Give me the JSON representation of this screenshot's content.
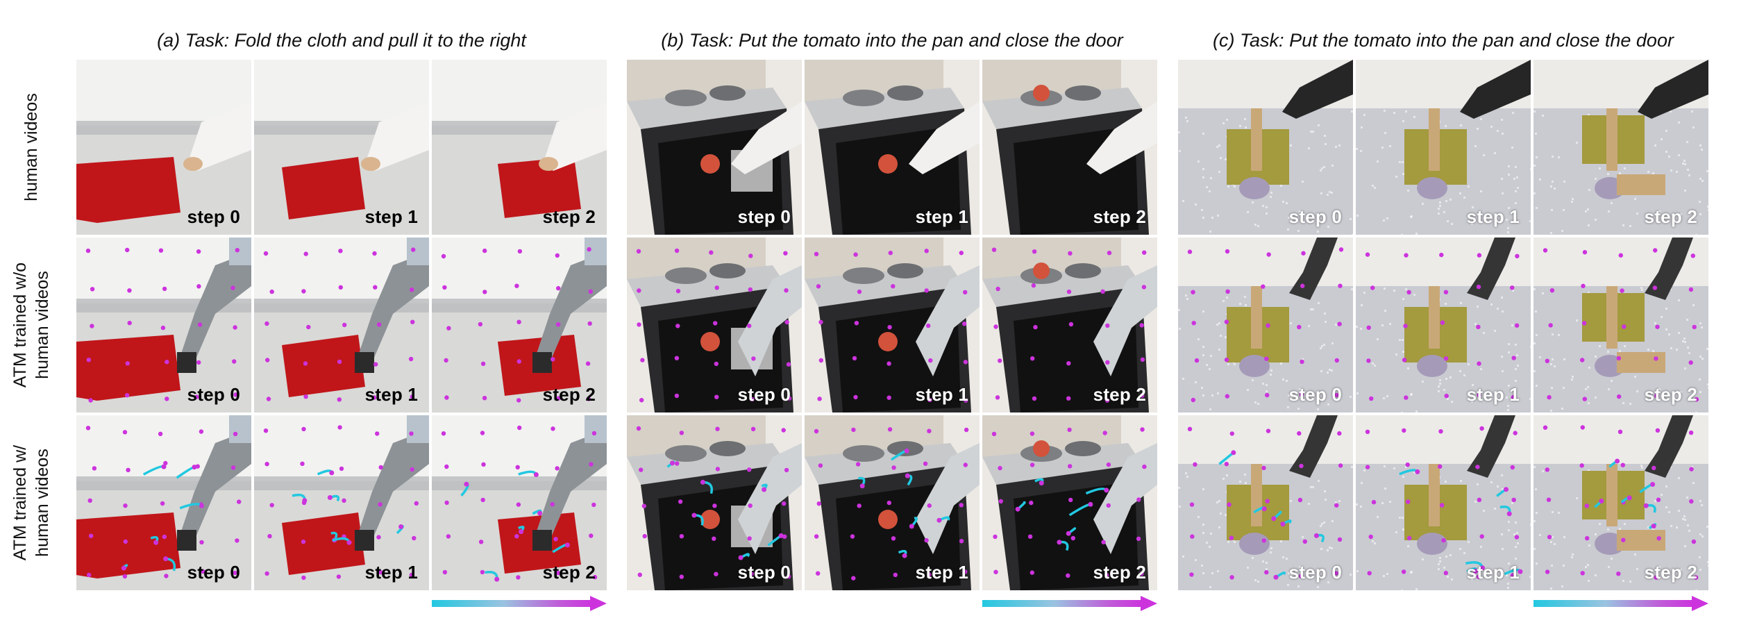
{
  "panels": [
    {
      "label": "(a) Task: Fold the cloth and pull it to the right",
      "scene": "cloth",
      "step_style": "dark"
    },
    {
      "label": "(b) Task: Put the tomato into the pan and close the door",
      "scene": "kitchen",
      "step_style": "light"
    },
    {
      "label": "(c) Task: Put the tomato into the pan and close the door",
      "scene": "board",
      "step_style": "light"
    }
  ],
  "rows": [
    {
      "label_lines": [
        "human videos"
      ],
      "kind": "human"
    },
    {
      "label_lines": [
        "ATM trained w/o",
        "human videos"
      ],
      "kind": "atm_without"
    },
    {
      "label_lines": [
        "ATM trained w/",
        "human videos"
      ],
      "kind": "atm_with"
    }
  ],
  "steps": [
    "step 0",
    "step 1",
    "step 2"
  ],
  "colors": {
    "track_start": "#22c8e0",
    "track_end": "#cc33dd",
    "cloth_red": "#c0161a",
    "robot_grey": "#8d9296",
    "tomato": "#d2523c"
  }
}
